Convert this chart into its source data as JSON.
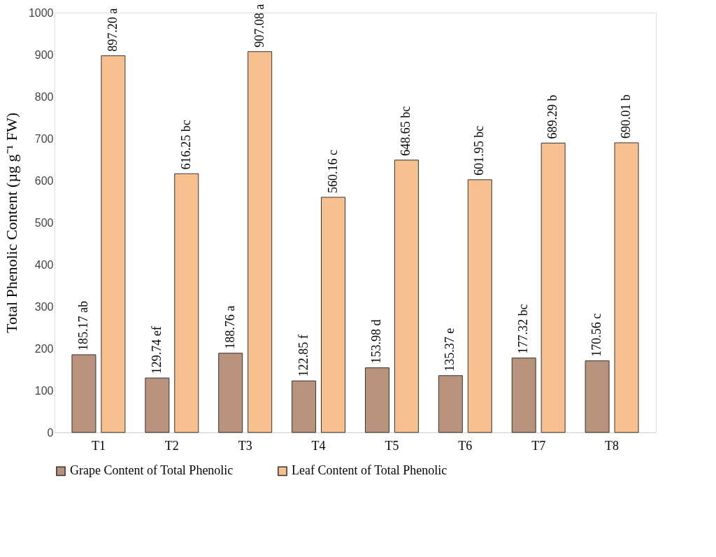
{
  "chart_data": {
    "type": "bar",
    "ylabel": "Total Phenolic Content (µg g⁻¹ FW)",
    "categories": [
      "T1",
      "T2",
      "T3",
      "T4",
      "T5",
      "T6",
      "T7",
      "T8"
    ],
    "series": [
      {
        "name": "Grape Content of Total Phenolic",
        "color": "#b8927a",
        "values": [
          185.17,
          129.74,
          188.76,
          122.85,
          153.98,
          135.37,
          177.32,
          170.56
        ],
        "value_labels": [
          "185.17 ab",
          "129.74 ef",
          "188.76 a",
          "122.85 f",
          "153.98 d",
          "135.37 e",
          "177.32 bc",
          "170.56 c"
        ]
      },
      {
        "name": "Leaf Content of Total Phenolic",
        "color": "#f8c08e",
        "values": [
          897.2,
          616.25,
          907.08,
          560.16,
          648.65,
          601.95,
          689.29,
          690.01
        ],
        "value_labels": [
          "897.20 a",
          "616.25 bc",
          "907.08 a",
          "560.16 c",
          "648.65 bc",
          "601.95 bc",
          "689.29 b",
          "690.01 b"
        ]
      }
    ],
    "ylim": [
      0,
      1000
    ],
    "yticks": [
      0,
      100,
      200,
      300,
      400,
      500,
      600,
      700,
      800,
      900,
      1000
    ],
    "grid": false,
    "legend": "bottom"
  }
}
